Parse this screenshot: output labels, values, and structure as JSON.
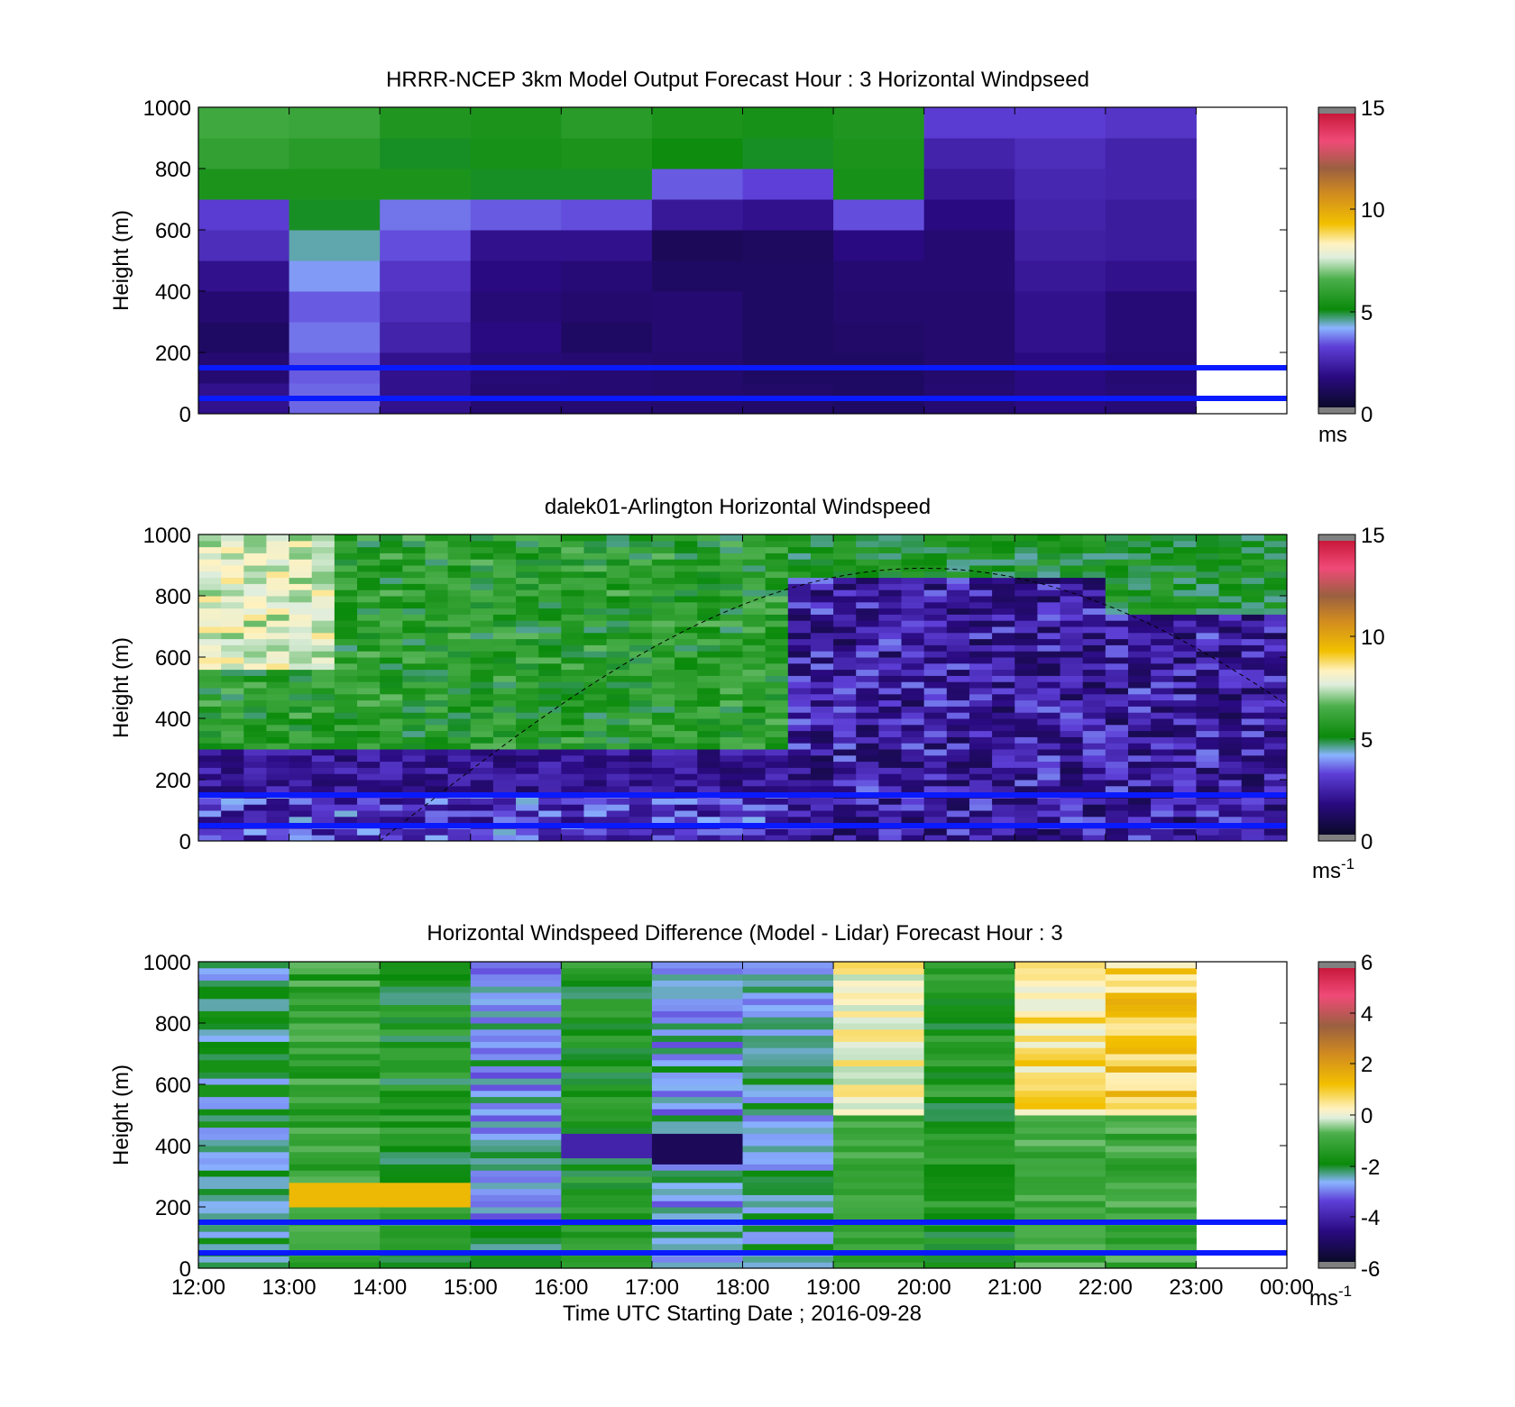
{
  "figure": {
    "xlabel": "Time UTC  Starting Date ; 2016-09-28",
    "x_ticks": [
      "12:00",
      "13:00",
      "14:00",
      "15:00",
      "16:00",
      "17:00",
      "18:00",
      "19:00",
      "20:00",
      "21:00",
      "22:00",
      "23:00",
      "00:00"
    ]
  },
  "chart_data": [
    {
      "type": "heatmap",
      "title": "HRRR-NCEP 3km Model Output   Forecast Hour : 3 Horizontal Windpseed",
      "ylabel": "Height (m)",
      "ylim": [
        0,
        1000
      ],
      "y_ticks": [
        "0",
        "200",
        "400",
        "600",
        "800",
        "1000"
      ],
      "colorbar": {
        "ticks": [
          "0",
          "5",
          "10",
          "15"
        ],
        "range": [
          0,
          15
        ],
        "unit": "ms",
        "unit_sup": ""
      },
      "reference_lines_m": [
        150,
        50
      ],
      "grid": "hourly columns 12:00-23:00, 100 m rows; cell values in m/s",
      "rows_bottom_to_top_heights_m": [
        0,
        100,
        200,
        300,
        400,
        500,
        600,
        700,
        800,
        900
      ],
      "values_by_hour": [
        [
          2.0,
          1.5,
          1.2,
          1.5,
          2.0,
          2.8,
          3.2,
          5.5,
          6.0,
          6.3
        ],
        [
          3.6,
          3.5,
          3.7,
          3.5,
          4.0,
          4.5,
          5.0,
          5.5,
          5.8,
          6.2
        ],
        [
          2.0,
          2.0,
          2.5,
          2.8,
          3.0,
          3.4,
          3.7,
          5.5,
          5.0,
          5.6
        ],
        [
          1.5,
          1.6,
          1.8,
          1.6,
          1.8,
          2.0,
          3.5,
          5.0,
          5.4,
          5.5
        ],
        [
          1.5,
          1.5,
          1.2,
          1.4,
          1.6,
          2.0,
          3.4,
          5.0,
          5.5,
          5.8
        ],
        [
          1.4,
          1.4,
          1.5,
          1.5,
          1.2,
          1.0,
          2.2,
          3.5,
          5.2,
          5.5
        ],
        [
          1.3,
          1.2,
          1.2,
          1.2,
          1.2,
          1.1,
          2.0,
          3.3,
          5.0,
          5.4
        ],
        [
          1.2,
          1.2,
          1.3,
          1.4,
          1.5,
          1.8,
          3.4,
          5.4,
          5.5,
          5.6
        ],
        [
          1.5,
          1.4,
          1.4,
          1.4,
          1.5,
          1.5,
          1.8,
          2.2,
          2.5,
          3.2
        ],
        [
          1.8,
          1.8,
          2.0,
          2.0,
          2.2,
          2.4,
          2.5,
          2.6,
          2.8,
          3.2
        ],
        [
          1.6,
          1.5,
          1.6,
          1.6,
          2.0,
          2.3,
          2.3,
          2.5,
          2.5,
          3.0
        ]
      ]
    },
    {
      "type": "heatmap",
      "title": "dalek01-Arlington  Horizontal Windspeed",
      "ylabel": "Height (m)",
      "ylim": [
        0,
        1000
      ],
      "y_ticks": [
        "0",
        "200",
        "400",
        "600",
        "800",
        "1000"
      ],
      "colorbar": {
        "ticks": [
          "0",
          "5",
          "10",
          "15"
        ],
        "range": [
          0,
          15
        ],
        "unit": "ms",
        "unit_sup": "-1"
      },
      "reference_lines_m": [
        150,
        50
      ],
      "grid": "about 48 time columns (15-min), about 50 height gates; field summarized by regions (m/s)",
      "regions": [
        {
          "hours": [
            12,
            13.5
          ],
          "heights": [
            300,
            1000
          ],
          "speed": "5-9"
        },
        {
          "hours": [
            13.5,
            18.5
          ],
          "heights": [
            300,
            850
          ],
          "speed": "4-7"
        },
        {
          "hours": [
            12,
            18.5
          ],
          "heights": [
            150,
            300
          ],
          "speed": "1-3"
        },
        {
          "hours": [
            18.5,
            24
          ],
          "heights": [
            0,
            850
          ],
          "speed": "1-4"
        },
        {
          "hours": [
            18.5,
            24
          ],
          "heights": [
            850,
            1000
          ],
          "speed": "4-6"
        }
      ],
      "annotation": "dashed arc from 14:00 near 0 m, peak about 890 m near 20:00, about 420 m at 24:00"
    },
    {
      "type": "heatmap",
      "title": "Horizontal Windspeed Difference (Model - Lidar) Forecast Hour : 3",
      "ylabel": "Height (m)",
      "ylim": [
        0,
        1000
      ],
      "y_ticks": [
        "0",
        "200",
        "400",
        "600",
        "800",
        "1000"
      ],
      "colorbar": {
        "ticks": [
          "-6",
          "-4",
          "-2",
          "0",
          "2",
          "4",
          "6"
        ],
        "range": [
          -6,
          6
        ],
        "unit": "ms",
        "unit_sup": "-1"
      },
      "reference_lines_m": [
        150,
        50
      ],
      "grid": "hourly columns 12:00-23:00, about 50 height gates; field summarized by hour (m/s)",
      "columns": [
        {
          "hour": "12:00",
          "summary": "-1 to -3"
        },
        {
          "hour": "13:00",
          "summary": "-1 aloft, +1.5 near 200-270 m"
        },
        {
          "hour": "14:00",
          "summary": "-1 to -2, +1.5 near 200-280 m"
        },
        {
          "hour": "15:00",
          "summary": "-2 to -3"
        },
        {
          "hour": "16:00",
          "summary": "-1 to -2, about -4 near 400 m"
        },
        {
          "hour": "17:00",
          "summary": "-2 to -3, about -5 near 400 m"
        },
        {
          "hour": "18:00",
          "summary": "-2 to -3"
        },
        {
          "hour": "19:00",
          "summary": "0 to +1.5 aloft, -1 below 500 m"
        },
        {
          "hour": "20:00",
          "summary": "-1 to -2"
        },
        {
          "hour": "21:00",
          "summary": "+1 to +2 aloft, -1 below"
        },
        {
          "hour": "22:00",
          "summary": "+1.5 to +2 aloft, -1 below"
        }
      ]
    }
  ]
}
